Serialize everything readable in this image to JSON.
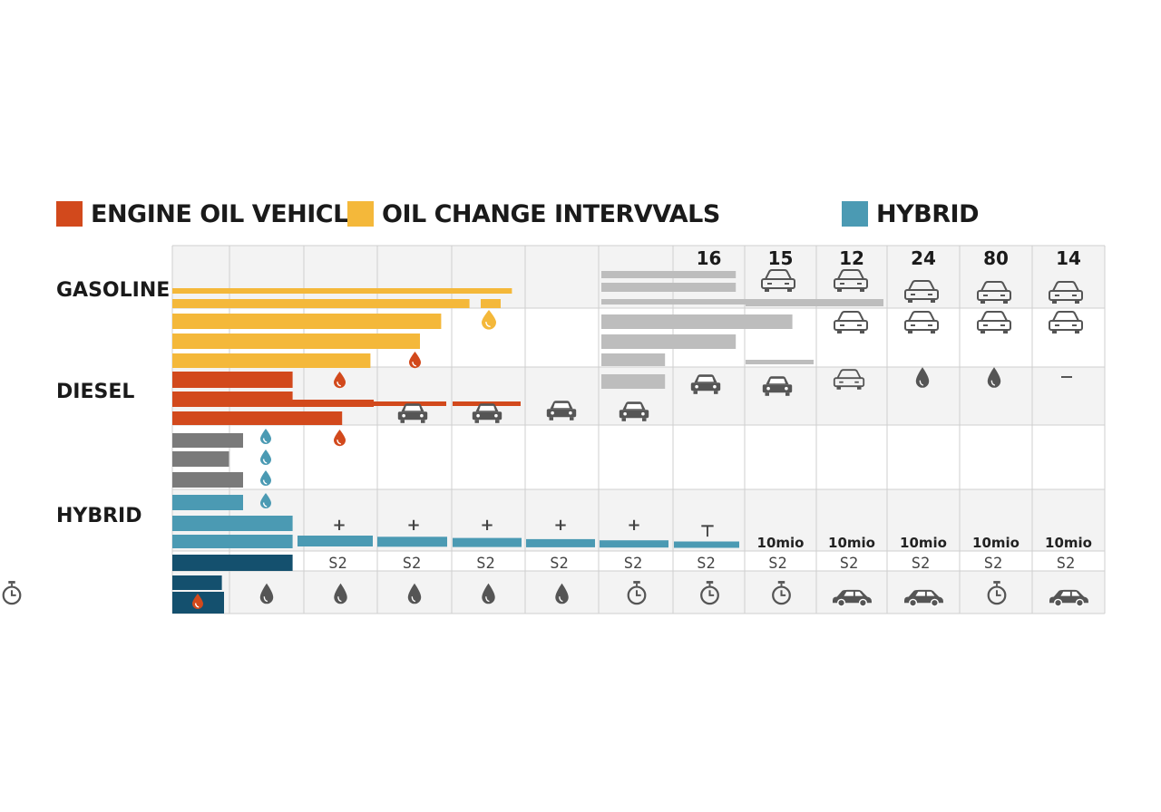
{
  "colors": {
    "engine_oil": "#d2491c",
    "oil_change": "#f4b83a",
    "hybrid": "#4b9ab3",
    "gray_bar": "#7a7a7a",
    "light_gray_bar": "#bdbdbd",
    "dark_teal": "#14506e",
    "icon": "#555555",
    "grid": "#cfcfcf",
    "band": "#f3f3f3"
  },
  "legend": [
    {
      "label": "ENGINE OIL VEHICLE",
      "color": "#d2491c"
    },
    {
      "label": "OIL CHANGE INTERVVALS",
      "color": "#f4b83a"
    },
    {
      "label": "HYBRID",
      "color": "#4b9ab3"
    }
  ],
  "row_labels": [
    "GASOLINE",
    "DIESEL",
    "HYBRID"
  ],
  "chart_data": {
    "type": "bar",
    "orientation": "horizontal",
    "column_headers": [
      "",
      "",
      "",
      "",
      "",
      "",
      "",
      "16",
      "15",
      "12",
      "24",
      "80",
      "14"
    ],
    "cell_repeat_text": "10mio",
    "squiggle_glyph": "S2",
    "groups": [
      {
        "label": "GASOLINE",
        "bars": [
          {
            "color": "oil_change",
            "value": 4.8
          },
          {
            "color": "oil_change",
            "value": 4.2
          },
          {
            "color": "oil_change",
            "value": 3.8
          },
          {
            "color": "oil_change",
            "value": 3.5
          },
          {
            "color": "oil_change",
            "value": 2.8
          }
        ]
      },
      {
        "label": "DIESEL",
        "bars": [
          {
            "color": "engine_oil",
            "value": 1.7
          },
          {
            "color": "engine_oil",
            "value": 1.7
          },
          {
            "color": "engine_oil",
            "value": 2.8
          },
          {
            "color": "engine_oil",
            "value": 2.4
          }
        ]
      },
      {
        "label": "",
        "bars": [
          {
            "color": "gray_bar",
            "value": 1.0
          },
          {
            "color": "gray_bar",
            "value": 0.8
          },
          {
            "color": "gray_bar",
            "value": 1.0
          }
        ]
      },
      {
        "label": "HYBRID",
        "bars": [
          {
            "color": "hybrid",
            "value": 1.0
          },
          {
            "color": "hybrid",
            "value": 1.7
          },
          {
            "color": "hybrid",
            "value": 1.7
          },
          {
            "color": "dark_teal",
            "value": 1.7
          },
          {
            "color": "dark_teal",
            "value": 0.7
          }
        ]
      }
    ],
    "gray_block": [
      {
        "value": 1.9
      },
      {
        "value": 1.9
      },
      {
        "value": 2.7
      },
      {
        "value": 2.7
      },
      {
        "value": 1.9
      },
      {
        "value": 0.9
      },
      {
        "value": 0.9
      }
    ],
    "icon_row": [
      "drop",
      "drop",
      "drop",
      "drop",
      "drop",
      "timer",
      "timer",
      "timer",
      "car",
      "car",
      "timer",
      "car",
      "timer"
    ],
    "title": "",
    "xlabel": "",
    "ylabel": "",
    "grid": true,
    "legend_position": "top"
  }
}
